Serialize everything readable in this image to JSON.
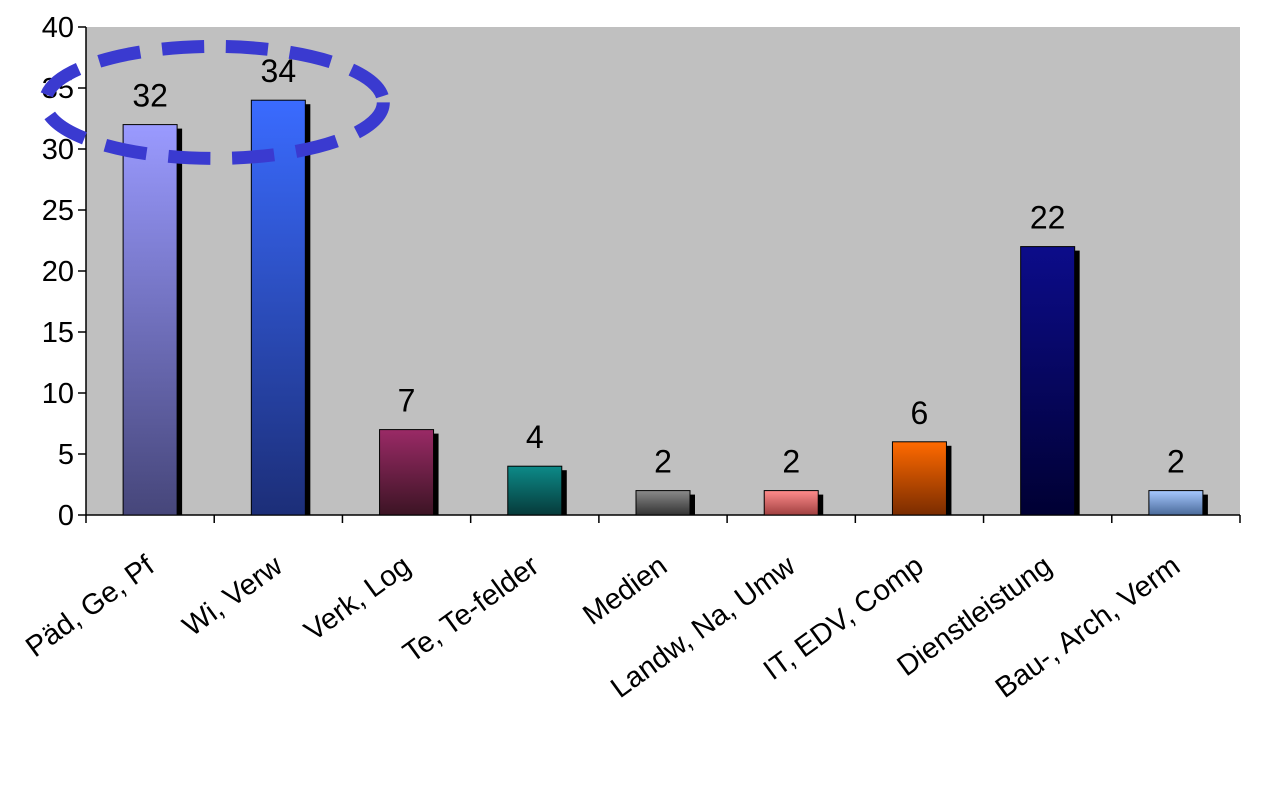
{
  "chart_data": {
    "type": "bar",
    "categories": [
      "Päd, Ge, Pf",
      "Wi, Verw",
      "Verk, Log",
      "Te, Te-felder",
      "Medien",
      "Landw, Na, Umw",
      "IT, EDV, Comp",
      "Dienstleistung",
      "Bau-, Arch, Verm"
    ],
    "values": [
      32,
      34,
      7,
      4,
      2,
      2,
      6,
      22,
      2
    ],
    "data_labels": [
      "32",
      "34",
      "7",
      "4",
      "2",
      "2",
      "6",
      "22",
      "2"
    ],
    "ylim": [
      0,
      40
    ],
    "yticks": [
      "0",
      "5",
      "10",
      "15",
      "20",
      "25",
      "30",
      "35",
      "40"
    ],
    "grid": false,
    "legend": "none",
    "plot_background": "#c0c0c0",
    "bar_colors": [
      [
        "#9a9aff",
        "#46467a"
      ],
      [
        "#3a6bff",
        "#1c2e78"
      ],
      [
        "#9a2a66",
        "#3c1424"
      ],
      [
        "#0c8a88",
        "#063a3a"
      ],
      [
        "#8a8a8a",
        "#333333"
      ],
      [
        "#ff8c8c",
        "#a04040"
      ],
      [
        "#ff6a00",
        "#7a2c00"
      ],
      [
        "#0c0c8a",
        "#000033"
      ],
      [
        "#a6c8ff",
        "#4a6a9a"
      ]
    ],
    "highlight": {
      "shape": "dashed-ellipse",
      "color": "#3a3ad0",
      "covers": [
        "Päd, Ge, Pf",
        "Wi, Verw"
      ]
    }
  }
}
